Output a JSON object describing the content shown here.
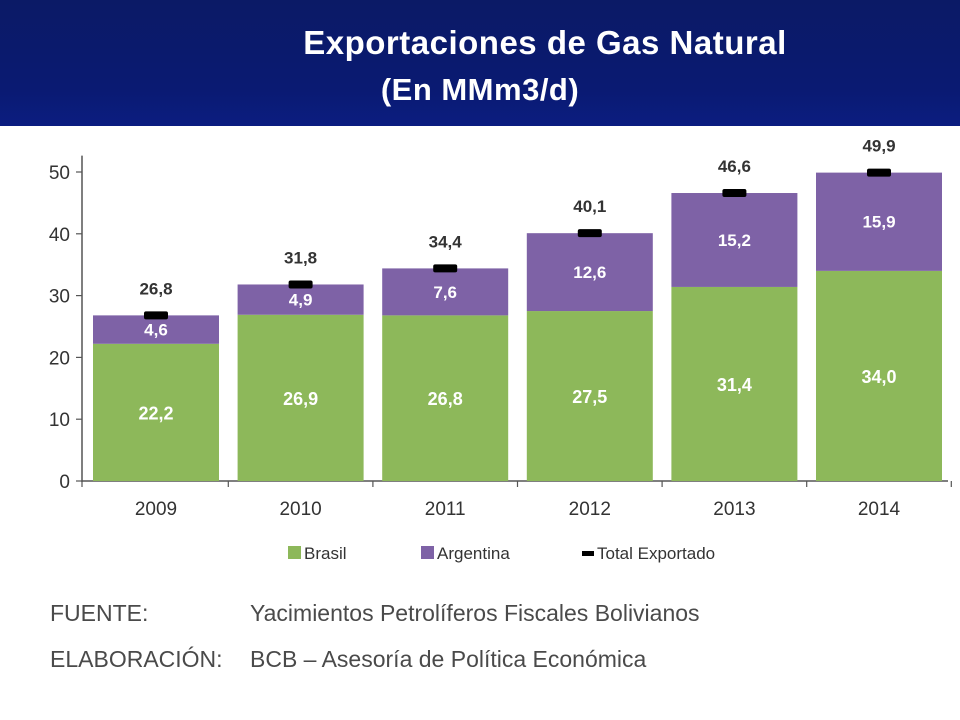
{
  "header": {
    "title_line1": "Exportaciones de Gas Natural",
    "title_line2": "(En MMm3/d)"
  },
  "chart_data": {
    "type": "bar",
    "stacked": true,
    "categories": [
      "2009",
      "2010",
      "2011",
      "2012",
      "2013",
      "2014"
    ],
    "series": [
      {
        "name": "Brasil",
        "values": [
          22.2,
          26.9,
          26.8,
          27.5,
          31.4,
          34.0
        ],
        "labels": [
          "22,2",
          "26,9",
          "26,8",
          "27,5",
          "31,4",
          "34,0"
        ],
        "color": "#8db85a"
      },
      {
        "name": "Argentina",
        "values": [
          4.6,
          4.9,
          7.6,
          12.6,
          15.2,
          15.9
        ],
        "labels": [
          "4,6",
          "4,9",
          "7,6",
          "12,6",
          "15,2",
          "15,9"
        ],
        "color": "#7e62a6"
      }
    ],
    "totals": {
      "name": "Total Exportado",
      "values": [
        26.8,
        31.8,
        34.4,
        40.1,
        46.6,
        49.9
      ],
      "labels": [
        "26,8",
        "31,8",
        "34,4",
        "40,1",
        "46,6",
        "49,9"
      ],
      "color": "#000000"
    },
    "ylim": [
      0,
      55
    ],
    "yticks": [
      0,
      10,
      20,
      30,
      40,
      50
    ],
    "grid": false,
    "legend_position": "bottom"
  },
  "footer": {
    "fuente_label": "FUENTE:",
    "fuente_value": "Yacimientos Petrolíferos Fiscales Bolivianos",
    "elab_label": "ELABORACIÓN:",
    "elab_value": "BCB – Asesoría de Política Económica"
  }
}
